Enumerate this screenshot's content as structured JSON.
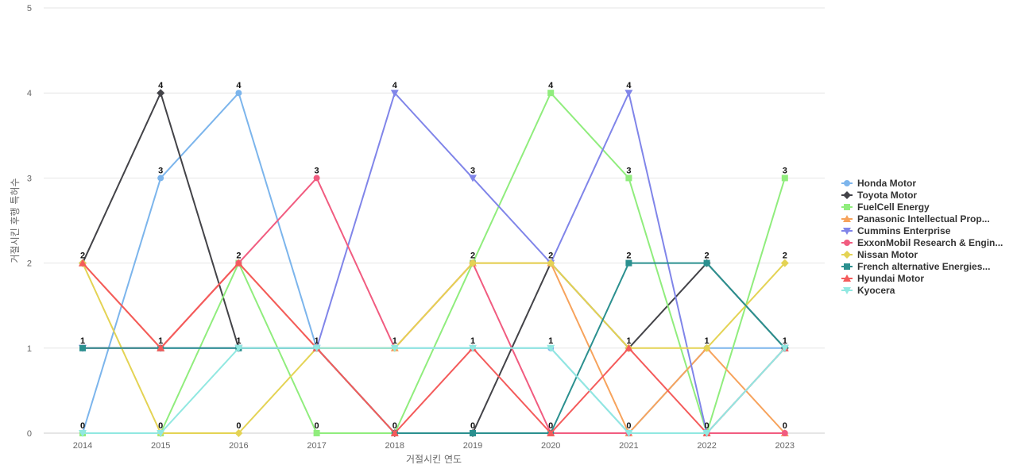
{
  "chart_data": {
    "type": "line",
    "title": "",
    "xlabel": "거절시킨 연도",
    "ylabel": "거절시킨 후행 특허수",
    "categories": [
      "2014",
      "2015",
      "2016",
      "2017",
      "2018",
      "2019",
      "2020",
      "2021",
      "2022",
      "2023"
    ],
    "ylim": [
      0,
      5
    ],
    "yticks": [
      0,
      1,
      2,
      3,
      4,
      5
    ],
    "grid": true,
    "legend_position": "right",
    "series": [
      {
        "name": "Honda Motor",
        "color": "#7cb5ec",
        "marker": "circle",
        "values": [
          0,
          3,
          4,
          1,
          1,
          1,
          1,
          0,
          1,
          1
        ]
      },
      {
        "name": "Toyota Motor",
        "color": "#434348",
        "marker": "diamond",
        "values": [
          2,
          4,
          1,
          1,
          0,
          0,
          2,
          1,
          2,
          1
        ]
      },
      {
        "name": "FuelCell Energy",
        "color": "#90ed7d",
        "marker": "square",
        "values": [
          0,
          0,
          2,
          0,
          0,
          2,
          4,
          3,
          0,
          3
        ]
      },
      {
        "name": "Panasonic Intellectual Prop...",
        "color": "#f7a35c",
        "marker": "triangle",
        "values": [
          2,
          1,
          2,
          1,
          1,
          2,
          2,
          0,
          1,
          0
        ]
      },
      {
        "name": "Cummins Enterprise",
        "color": "#8085e9",
        "marker": "triangle-down",
        "values": [
          1,
          1,
          1,
          1,
          4,
          3,
          2,
          4,
          0,
          1
        ]
      },
      {
        "name": "ExxonMobil Research & Engin...",
        "color": "#f15c80",
        "marker": "circle",
        "values": [
          1,
          1,
          2,
          3,
          1,
          2,
          0,
          0,
          0,
          0
        ]
      },
      {
        "name": "Nissan Motor",
        "color": "#e4d354",
        "marker": "diamond",
        "values": [
          2,
          0,
          0,
          1,
          1,
          2,
          2,
          1,
          1,
          2
        ]
      },
      {
        "name": "French alternative Energies...",
        "color": "#2b908f",
        "marker": "square",
        "values": [
          1,
          1,
          1,
          1,
          0,
          0,
          0,
          2,
          2,
          1
        ]
      },
      {
        "name": "Hyundai Motor",
        "color": "#f45b5b",
        "marker": "triangle",
        "values": [
          2,
          1,
          2,
          1,
          0,
          1,
          0,
          1,
          0,
          1
        ]
      },
      {
        "name": "Kyocera",
        "color": "#91e8e1",
        "marker": "triangle-down",
        "values": [
          0,
          0,
          1,
          1,
          1,
          1,
          1,
          0,
          0,
          1
        ]
      }
    ],
    "data_labels": [
      {
        "category": "2014",
        "series": "Toyota Motor",
        "text": "2"
      },
      {
        "category": "2014",
        "series": "Cummins Enterprise",
        "text": "1"
      },
      {
        "category": "2014",
        "series": "Honda Motor",
        "text": "0"
      },
      {
        "category": "2015",
        "series": "Toyota Motor",
        "text": "4"
      },
      {
        "category": "2015",
        "series": "Honda Motor",
        "text": "3"
      },
      {
        "category": "2015",
        "series": "Cummins Enterprise",
        "text": "1"
      },
      {
        "category": "2015",
        "series": "FuelCell Energy",
        "text": "0"
      },
      {
        "category": "2016",
        "series": "Honda Motor",
        "text": "4"
      },
      {
        "category": "2016",
        "series": "FuelCell Energy",
        "text": "2"
      },
      {
        "category": "2016",
        "series": "Toyota Motor",
        "text": "1"
      },
      {
        "category": "2016",
        "series": "Nissan Motor",
        "text": "0"
      },
      {
        "category": "2017",
        "series": "ExxonMobil Research & Engin...",
        "text": "3"
      },
      {
        "category": "2017",
        "series": "Honda Motor",
        "text": "1"
      },
      {
        "category": "2017",
        "series": "FuelCell Energy",
        "text": "0"
      },
      {
        "category": "2018",
        "series": "Cummins Enterprise",
        "text": "4"
      },
      {
        "category": "2018",
        "series": "Honda Motor",
        "text": "1"
      },
      {
        "category": "2018",
        "series": "Toyota Motor",
        "text": "0"
      },
      {
        "category": "2019",
        "series": "Cummins Enterprise",
        "text": "3"
      },
      {
        "category": "2019",
        "series": "FuelCell Energy",
        "text": "2"
      },
      {
        "category": "2019",
        "series": "Honda Motor",
        "text": "1"
      },
      {
        "category": "2019",
        "series": "Toyota Motor",
        "text": "0"
      },
      {
        "category": "2020",
        "series": "FuelCell Energy",
        "text": "4"
      },
      {
        "category": "2020",
        "series": "Toyota Motor",
        "text": "2"
      },
      {
        "category": "2020",
        "series": "Honda Motor",
        "text": "1"
      },
      {
        "category": "2020",
        "series": "ExxonMobil Research & Engin...",
        "text": "0"
      },
      {
        "category": "2021",
        "series": "Cummins Enterprise",
        "text": "4"
      },
      {
        "category": "2021",
        "series": "FuelCell Energy",
        "text": "3"
      },
      {
        "category": "2021",
        "series": "French alternative Energies...",
        "text": "2"
      },
      {
        "category": "2021",
        "series": "Toyota Motor",
        "text": "1"
      },
      {
        "category": "2021",
        "series": "Honda Motor",
        "text": "0"
      },
      {
        "category": "2022",
        "series": "Toyota Motor",
        "text": "2"
      },
      {
        "category": "2022",
        "series": "Honda Motor",
        "text": "1"
      },
      {
        "category": "2022",
        "series": "FuelCell Energy",
        "text": "0"
      },
      {
        "category": "2023",
        "series": "FuelCell Energy",
        "text": "3"
      },
      {
        "category": "2023",
        "series": "Nissan Motor",
        "text": "2"
      },
      {
        "category": "2023",
        "series": "Honda Motor",
        "text": "1"
      },
      {
        "category": "2023",
        "series": "Panasonic Intellectual Prop...",
        "text": "0"
      }
    ]
  }
}
